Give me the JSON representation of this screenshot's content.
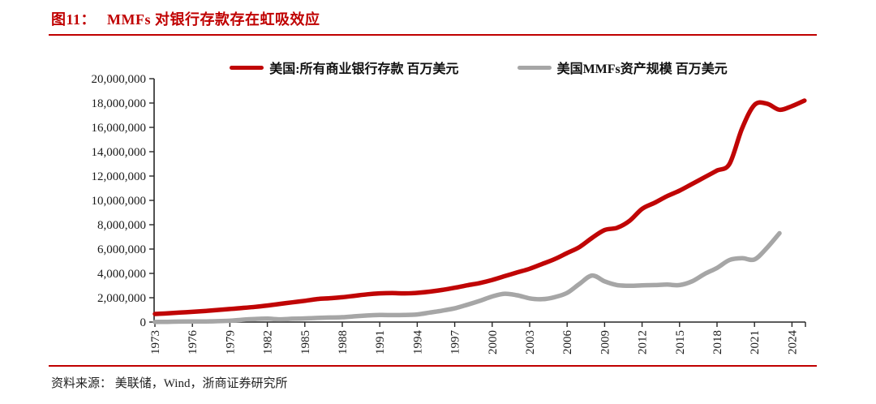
{
  "figure": {
    "label": "图11：",
    "title": "MMFs 对银行存款存在虹吸效应"
  },
  "source_note": "资料来源： 美联储，Wind，浙商证券研究所",
  "colors": {
    "accent_red": "#c00000",
    "line_red": "#c00505",
    "line_gray": "#a6a6a6",
    "axis": "#262626",
    "tick_text": "#1a1a1a"
  },
  "chart_data": {
    "type": "line",
    "title": "MMFs 对银行存款存在虹吸效应",
    "xlabel": "",
    "ylabel": "",
    "grid": false,
    "legend_position": "top-center",
    "ylim": [
      0,
      20000000
    ],
    "xlim": [
      1973,
      2025.3
    ],
    "y_tick_step": 2000000,
    "y_tick_labels": [
      "0",
      "2,000,000",
      "4,000,000",
      "6,000,000",
      "8,000,000",
      "10,000,000",
      "12,000,000",
      "14,000,000",
      "16,000,000",
      "18,000,000",
      "20,000,000"
    ],
    "x_ticks": [
      1973,
      1976,
      1979,
      1982,
      1985,
      1988,
      1991,
      1994,
      1997,
      2000,
      2003,
      2006,
      2009,
      2012,
      2015,
      2018,
      2021,
      2024
    ],
    "series": [
      {
        "name": "美国:所有商业银行存款 百万美元",
        "color": "#c00505",
        "points": [
          [
            1973,
            670000
          ],
          [
            1974,
            720000
          ],
          [
            1975,
            780000
          ],
          [
            1976,
            840000
          ],
          [
            1977,
            910000
          ],
          [
            1978,
            990000
          ],
          [
            1979,
            1070000
          ],
          [
            1980,
            1160000
          ],
          [
            1981,
            1250000
          ],
          [
            1982,
            1360000
          ],
          [
            1983,
            1490000
          ],
          [
            1984,
            1620000
          ],
          [
            1985,
            1750000
          ],
          [
            1986,
            1890000
          ],
          [
            1987,
            1960000
          ],
          [
            1988,
            2040000
          ],
          [
            1989,
            2160000
          ],
          [
            1990,
            2280000
          ],
          [
            1991,
            2360000
          ],
          [
            1992,
            2380000
          ],
          [
            1993,
            2360000
          ],
          [
            1994,
            2400000
          ],
          [
            1995,
            2500000
          ],
          [
            1996,
            2640000
          ],
          [
            1997,
            2820000
          ],
          [
            1998,
            3020000
          ],
          [
            1999,
            3210000
          ],
          [
            2000,
            3460000
          ],
          [
            2001,
            3770000
          ],
          [
            2002,
            4080000
          ],
          [
            2003,
            4380000
          ],
          [
            2004,
            4770000
          ],
          [
            2005,
            5170000
          ],
          [
            2006,
            5670000
          ],
          [
            2007,
            6170000
          ],
          [
            2008,
            6920000
          ],
          [
            2009,
            7560000
          ],
          [
            2010,
            7750000
          ],
          [
            2011,
            8320000
          ],
          [
            2012,
            9300000
          ],
          [
            2013,
            9800000
          ],
          [
            2014,
            10350000
          ],
          [
            2015,
            10800000
          ],
          [
            2016,
            11350000
          ],
          [
            2017,
            11900000
          ],
          [
            2018,
            12450000
          ],
          [
            2019,
            13000000
          ],
          [
            2020,
            15900000
          ],
          [
            2021,
            17850000
          ],
          [
            2022,
            17950000
          ],
          [
            2023,
            17450000
          ],
          [
            2024,
            17750000
          ],
          [
            2025,
            18200000
          ]
        ]
      },
      {
        "name": "美国MMFs资产规模 百万美元",
        "color": "#a6a6a6",
        "points": [
          [
            1973,
            10000
          ],
          [
            1974,
            20000
          ],
          [
            1975,
            40000
          ],
          [
            1976,
            50000
          ],
          [
            1977,
            50000
          ],
          [
            1978,
            70000
          ],
          [
            1979,
            110000
          ],
          [
            1980,
            190000
          ],
          [
            1981,
            250000
          ],
          [
            1982,
            280000
          ],
          [
            1983,
            230000
          ],
          [
            1984,
            270000
          ],
          [
            1985,
            300000
          ],
          [
            1986,
            340000
          ],
          [
            1987,
            370000
          ],
          [
            1988,
            400000
          ],
          [
            1989,
            470000
          ],
          [
            1990,
            540000
          ],
          [
            1991,
            580000
          ],
          [
            1992,
            570000
          ],
          [
            1993,
            580000
          ],
          [
            1994,
            630000
          ],
          [
            1995,
            780000
          ],
          [
            1996,
            940000
          ],
          [
            1997,
            1130000
          ],
          [
            1998,
            1420000
          ],
          [
            1999,
            1740000
          ],
          [
            2000,
            2100000
          ],
          [
            2001,
            2330000
          ],
          [
            2002,
            2200000
          ],
          [
            2003,
            1950000
          ],
          [
            2004,
            1880000
          ],
          [
            2005,
            2050000
          ],
          [
            2006,
            2400000
          ],
          [
            2007,
            3150000
          ],
          [
            2008,
            3830000
          ],
          [
            2009,
            3350000
          ],
          [
            2010,
            3040000
          ],
          [
            2011,
            2980000
          ],
          [
            2012,
            3020000
          ],
          [
            2013,
            3040000
          ],
          [
            2014,
            3080000
          ],
          [
            2015,
            3040000
          ],
          [
            2016,
            3350000
          ],
          [
            2017,
            3950000
          ],
          [
            2018,
            4450000
          ],
          [
            2019,
            5100000
          ],
          [
            2020,
            5250000
          ],
          [
            2021,
            5150000
          ],
          [
            2022,
            6100000
          ],
          [
            2023,
            7300000
          ]
        ]
      }
    ]
  }
}
